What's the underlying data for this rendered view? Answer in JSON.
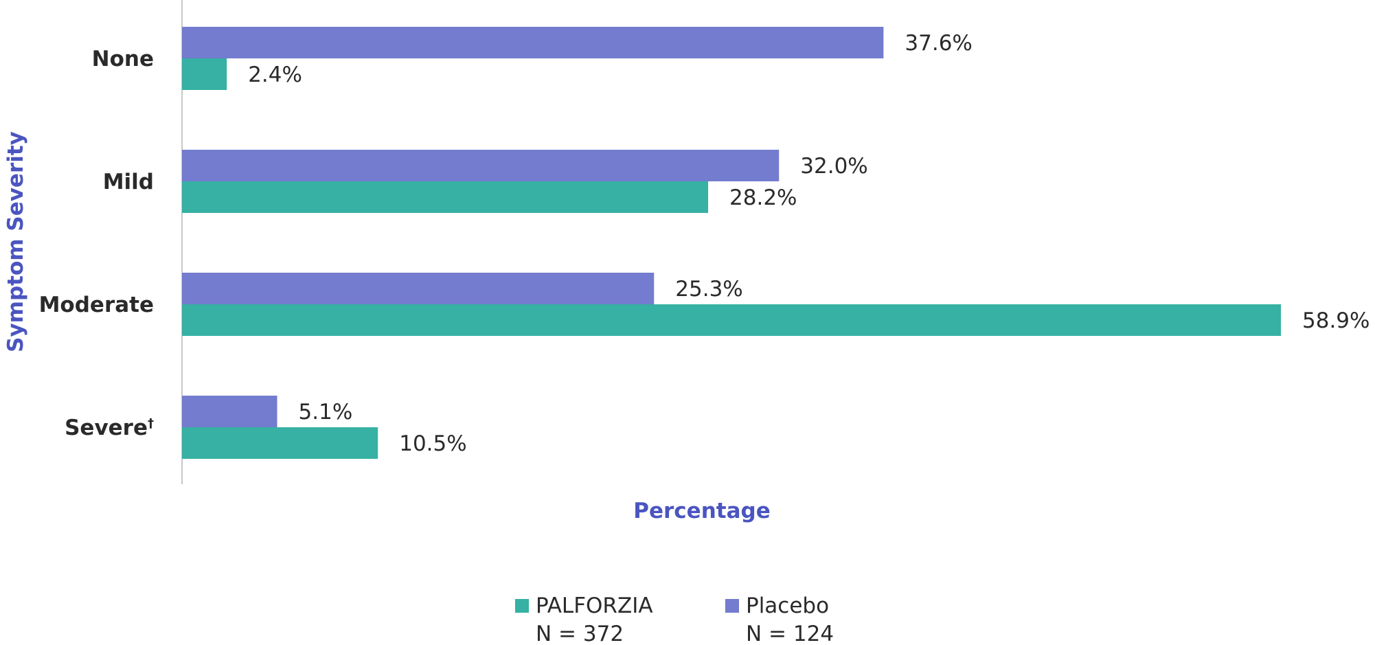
{
  "chart_data": {
    "type": "bar",
    "orientation": "horizontal",
    "categories": [
      "None",
      "Mild",
      "Moderate",
      "Severe"
    ],
    "category_footnotes": [
      "",
      "",
      "",
      "†"
    ],
    "series": [
      {
        "name": "Placebo",
        "n_label": "N = 124",
        "color": "#737cce",
        "values": [
          37.6,
          32.0,
          25.3,
          5.1
        ],
        "labels": [
          "37.6%",
          "32.0%",
          "25.3%",
          "5.1%"
        ]
      },
      {
        "name": "PALFORZIA",
        "n_label": "N = 372",
        "color": "#36b1a3",
        "values": [
          2.4,
          28.2,
          58.9,
          10.5
        ],
        "labels": [
          "2.4%",
          "28.2%",
          "58.9%",
          "10.5%"
        ]
      }
    ],
    "legend_order": [
      "PALFORZIA",
      "Placebo"
    ],
    "xlabel": "Percentage",
    "ylabel": "Symptom Severity",
    "xlim": [
      0,
      58.9
    ],
    "legend_position": "bottom-center",
    "grid": false,
    "axis_title_color": "#4a55c0"
  }
}
